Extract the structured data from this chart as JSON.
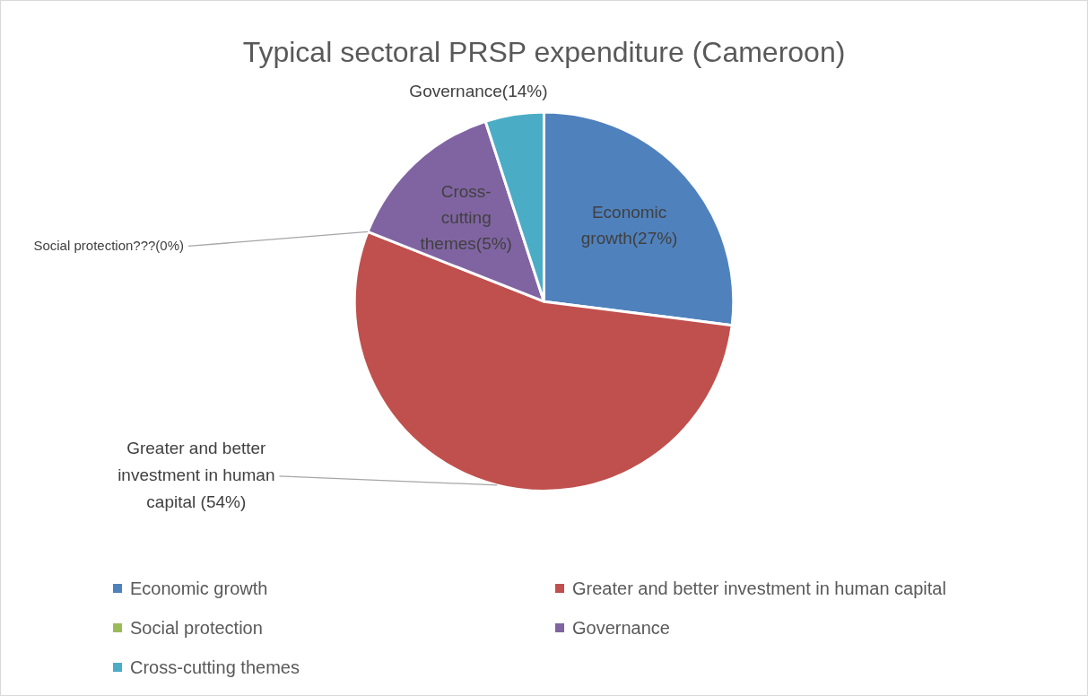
{
  "chart_data": {
    "type": "pie",
    "title": "Typical sectoral PRSP expenditure (Cameroon)",
    "categories": [
      "Economic growth",
      "Greater and better investment in human capital",
      "Social protection",
      "Governance",
      "Cross-cutting themes"
    ],
    "values": [
      27,
      54,
      0,
      14,
      5
    ],
    "colors": [
      "#4f81bd",
      "#c0504d",
      "#9bbb59",
      "#8064a2",
      "#4bacc6"
    ],
    "value_labels": [
      "Economic growth(27%)",
      "Greater and better investment in human capital (54%)",
      "Social protection???(0%)",
      "Cross-cutting themes(5%)",
      "Governance(14%)"
    ],
    "legend": "bottom"
  }
}
